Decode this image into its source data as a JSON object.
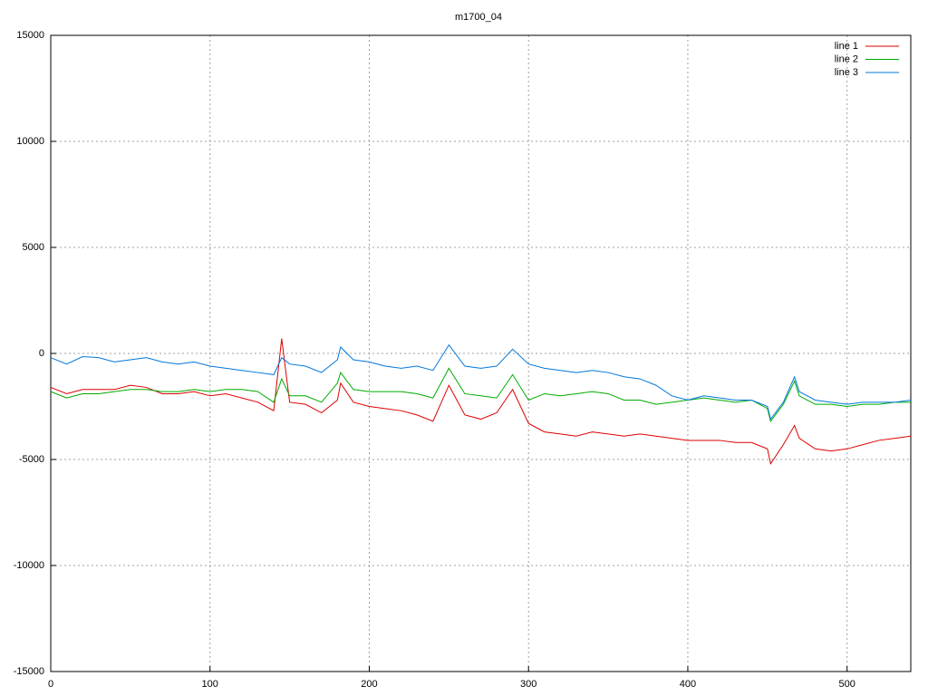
{
  "chart_data": {
    "type": "line",
    "title": "m1700_04",
    "x": [
      0,
      10,
      20,
      30,
      40,
      50,
      60,
      70,
      80,
      90,
      100,
      110,
      120,
      130,
      140,
      145,
      150,
      160,
      170,
      180,
      182,
      190,
      200,
      210,
      220,
      230,
      240,
      250,
      260,
      270,
      280,
      290,
      300,
      310,
      320,
      330,
      340,
      350,
      360,
      370,
      380,
      390,
      400,
      410,
      420,
      430,
      440,
      450,
      452,
      460,
      467,
      470,
      480,
      490,
      500,
      510,
      520,
      530,
      540
    ],
    "series": [
      {
        "name": "line 1",
        "color": "#dd0000",
        "values": [
          -1600,
          -1900,
          -1700,
          -1700,
          -1700,
          -1500,
          -1600,
          -1900,
          -1900,
          -1800,
          -2000,
          -1900,
          -2100,
          -2300,
          -2700,
          700,
          -2300,
          -2400,
          -2800,
          -2200,
          -1400,
          -2300,
          -2500,
          -2600,
          -2700,
          -2900,
          -3200,
          -1500,
          -2900,
          -3100,
          -2800,
          -1700,
          -3300,
          -3700,
          -3800,
          -3900,
          -3700,
          -3800,
          -3900,
          -3800,
          -3900,
          -4000,
          -4100,
          -4100,
          -4100,
          -4200,
          -4200,
          -4500,
          -5200,
          -4300,
          -3400,
          -4000,
          -4500,
          -4600,
          -4500,
          -4300,
          -4100,
          -4000,
          -3900
        ]
      },
      {
        "name": "line 2",
        "color": "#00aa00",
        "values": [
          -1800,
          -2100,
          -1900,
          -1900,
          -1800,
          -1700,
          -1700,
          -1800,
          -1800,
          -1700,
          -1800,
          -1700,
          -1700,
          -1800,
          -2300,
          -1200,
          -2000,
          -2000,
          -2300,
          -1400,
          -900,
          -1700,
          -1800,
          -1800,
          -1800,
          -1900,
          -2100,
          -700,
          -1900,
          -2000,
          -2100,
          -1000,
          -2200,
          -1900,
          -2000,
          -1900,
          -1800,
          -1900,
          -2200,
          -2200,
          -2400,
          -2300,
          -2200,
          -2100,
          -2200,
          -2300,
          -2200,
          -2600,
          -3200,
          -2400,
          -1300,
          -2000,
          -2400,
          -2400,
          -2500,
          -2400,
          -2400,
          -2300,
          -2300
        ]
      },
      {
        "name": "line 3",
        "color": "#0077dd",
        "values": [
          -200,
          -500,
          -150,
          -200,
          -400,
          -300,
          -200,
          -400,
          -500,
          -400,
          -600,
          -700,
          -800,
          -900,
          -1000,
          -200,
          -500,
          -600,
          -900,
          -300,
          300,
          -300,
          -400,
          -600,
          -700,
          -600,
          -800,
          400,
          -600,
          -700,
          -600,
          200,
          -500,
          -700,
          -800,
          -900,
          -800,
          -900,
          -1100,
          -1200,
          -1500,
          -2000,
          -2200,
          -2000,
          -2100,
          -2200,
          -2200,
          -2500,
          -3100,
          -2300,
          -1100,
          -1800,
          -2200,
          -2300,
          -2400,
          -2300,
          -2300,
          -2300,
          -2200
        ]
      }
    ],
    "xlim": [
      0,
      540
    ],
    "xticks": [
      0,
      100,
      200,
      300,
      400,
      500
    ],
    "ylim": [
      -15000,
      15000
    ],
    "yticks": [
      -15000,
      -10000,
      -5000,
      0,
      5000,
      10000,
      15000
    ],
    "grid": true,
    "legend": "top-right"
  }
}
